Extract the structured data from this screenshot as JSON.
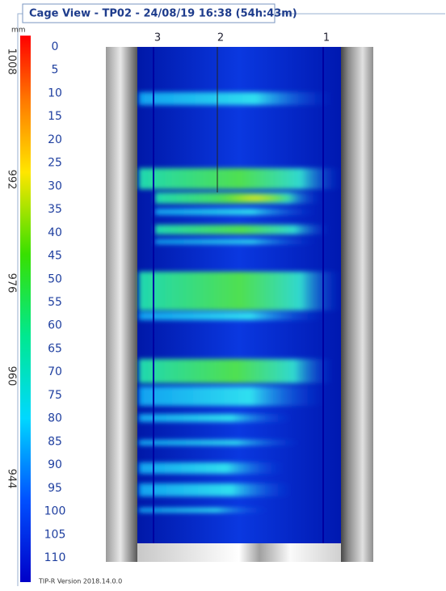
{
  "window": {
    "title": "Cage View - TP02 - 24/08/19 16:38 (54h:43m)"
  },
  "colorbar": {
    "unit": "mm",
    "labels": [
      "1008",
      "992",
      "976",
      "960",
      "944"
    ]
  },
  "depth_labels": [
    "0",
    "5",
    "10",
    "15",
    "20",
    "25",
    "30",
    "35",
    "40",
    "45",
    "50",
    "55",
    "60",
    "65",
    "70",
    "75",
    "80",
    "85",
    "90",
    "95",
    "100",
    "105",
    "110"
  ],
  "column_labels": [
    "3",
    "2",
    "1"
  ],
  "footer": "TIP-R Version 2018.14.0.0"
}
